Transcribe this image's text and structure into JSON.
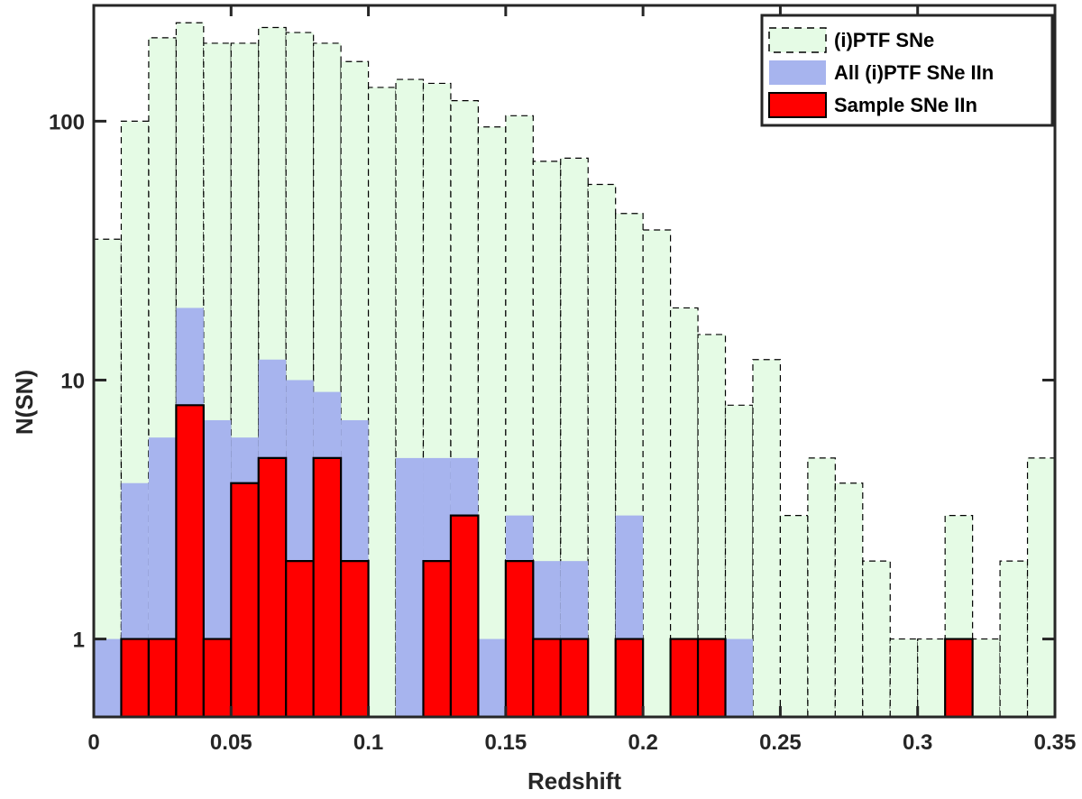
{
  "chart_data": {
    "type": "bar",
    "subtype": "overlaid-histogram",
    "xlabel": "Redshift",
    "ylabel": "N(SN)",
    "xlim": [
      0,
      0.35
    ],
    "ylim": [
      0.5,
      280
    ],
    "yscale": "log",
    "bin_width": 0.01,
    "bin_edges": [
      0,
      0.01,
      0.02,
      0.03,
      0.04,
      0.05,
      0.06,
      0.07,
      0.08,
      0.09,
      0.1,
      0.11,
      0.12,
      0.13,
      0.14,
      0.15,
      0.16,
      0.17,
      0.18,
      0.19,
      0.2,
      0.21,
      0.22,
      0.23,
      0.24,
      0.25,
      0.26,
      0.27,
      0.28,
      0.29,
      0.3,
      0.31,
      0.32,
      0.33,
      0.34,
      0.35
    ],
    "x_ticks": [
      0,
      0.05,
      0.1,
      0.15,
      0.2,
      0.25,
      0.3,
      0.35
    ],
    "x_tick_labels": [
      "0",
      "0.05",
      "0.1",
      "0.15",
      "0.2",
      "0.25",
      "0.3",
      "0.35"
    ],
    "y_ticks": [
      1,
      10,
      100
    ],
    "y_tick_labels": [
      "1",
      "10",
      "100"
    ],
    "grid": false,
    "legend_position": "top-right",
    "series": [
      {
        "name": "(i)PTF SNe",
        "color": "#e5fbe5",
        "edge_style": "dashed",
        "values": [
          35,
          100,
          210,
          240,
          200,
          200,
          230,
          220,
          200,
          170,
          135,
          145,
          140,
          120,
          95,
          105,
          70,
          72,
          57,
          44,
          38,
          19,
          15,
          8,
          12,
          3,
          5,
          4,
          2,
          1,
          1,
          3,
          1,
          2,
          5
        ]
      },
      {
        "name": "All (i)PTF SNe IIn",
        "color": "#a7b4ee",
        "edge_style": "solid",
        "values": [
          1,
          4,
          6,
          19,
          7,
          6,
          12,
          10,
          9,
          7,
          0,
          5,
          5,
          5,
          1,
          3,
          2,
          2,
          0,
          3,
          0,
          1,
          1,
          1,
          0,
          0,
          0,
          0,
          0,
          0,
          0,
          1,
          0,
          0,
          0
        ]
      },
      {
        "name": "Sample SNe IIn",
        "color": "#ff0000",
        "edge_style": "solid",
        "values": [
          0,
          1,
          1,
          8,
          1,
          4,
          5,
          2,
          5,
          2,
          0,
          0,
          2,
          3,
          0,
          2,
          1,
          1,
          0,
          1,
          0,
          1,
          1,
          0,
          0,
          0,
          0,
          0,
          0,
          0,
          0,
          1,
          0,
          0,
          0
        ]
      }
    ]
  }
}
